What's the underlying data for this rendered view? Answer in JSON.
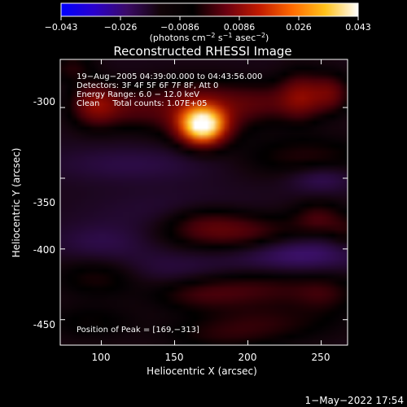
{
  "colorbar": {
    "ticks": [
      "−0.043",
      "−0.026",
      "−0.0086",
      "0.0086",
      "0.026",
      "0.043"
    ],
    "units_main": "(photons cm",
    "units_sup1": "−2",
    "units_mid1": " s",
    "units_sup2": "−1",
    "units_mid2": " asec",
    "units_sup3": "−2",
    "units_end": ")",
    "stops": [
      "#0000ff",
      "#2a00cc",
      "#3b0a66",
      "#120408",
      "#000000",
      "#6a0010",
      "#c21a00",
      "#ff6a00",
      "#ffc21a",
      "#ffffff"
    ]
  },
  "chart_data": {
    "type": "heatmap",
    "title": "Reconstructed RHESSI Image",
    "xlabel": "Heliocentric X (arcsec)",
    "ylabel": "Heliocentric Y (arcsec)",
    "xlim": [
      72,
      268
    ],
    "ylim": [
      -468,
      -266
    ],
    "xticks": [
      100,
      150,
      200,
      250
    ],
    "yticks": [
      -300,
      -350,
      -400,
      -450
    ],
    "color_range": [
      -0.043,
      0.043
    ],
    "annotations": [
      "19−Aug−2005 04:39:00.000 to 04:43:56.000",
      "Detectors: 3F 4F 5F 6F 7F 8F, Att 0",
      "Energy Range: 6.0 − 12.0 keV",
      "Clean     Total counts: 1.07E+05"
    ],
    "peak_label": "Position of Peak = [169,−313]",
    "peak": [
      169,
      -313
    ],
    "blobs": [
      {
        "x": 169,
        "y": -313,
        "sx": 11,
        "sy": 9,
        "amp": 0.045
      },
      {
        "x": 165,
        "y": -300,
        "sx": 26,
        "sy": 12,
        "amp": 0.014
      },
      {
        "x": 96,
        "y": -298,
        "sx": 11,
        "sy": 10,
        "amp": 0.016
      },
      {
        "x": 118,
        "y": -300,
        "sx": 14,
        "sy": 9,
        "amp": 0.006
      },
      {
        "x": 236,
        "y": -292,
        "sx": 10,
        "sy": 11,
        "amp": 0.014
      },
      {
        "x": 256,
        "y": -290,
        "sx": 9,
        "sy": 9,
        "amp": 0.012
      },
      {
        "x": 212,
        "y": -296,
        "sx": 18,
        "sy": 9,
        "amp": 0.007
      },
      {
        "x": 80,
        "y": -272,
        "sx": 10,
        "sy": 7,
        "amp": 0.006
      },
      {
        "x": 240,
        "y": -335,
        "sx": 30,
        "sy": 10,
        "amp": 0.006
      },
      {
        "x": 120,
        "y": -340,
        "sx": 40,
        "sy": 9,
        "amp": -0.004
      },
      {
        "x": 250,
        "y": -350,
        "sx": 16,
        "sy": 7,
        "amp": -0.006
      },
      {
        "x": 150,
        "y": -375,
        "sx": 42,
        "sy": 12,
        "amp": -0.003
      },
      {
        "x": 190,
        "y": -388,
        "sx": 32,
        "sy": 9,
        "amp": 0.011
      },
      {
        "x": 170,
        "y": -380,
        "sx": 18,
        "sy": 8,
        "amp": 0.005
      },
      {
        "x": 248,
        "y": -378,
        "sx": 12,
        "sy": 8,
        "amp": 0.008
      },
      {
        "x": 266,
        "y": -388,
        "sx": 8,
        "sy": 8,
        "amp": 0.005
      },
      {
        "x": 100,
        "y": -395,
        "sx": 24,
        "sy": 9,
        "amp": -0.004
      },
      {
        "x": 235,
        "y": -403,
        "sx": 30,
        "sy": 9,
        "amp": -0.008
      },
      {
        "x": 150,
        "y": -415,
        "sx": 34,
        "sy": 10,
        "amp": -0.004
      },
      {
        "x": 98,
        "y": -420,
        "sx": 20,
        "sy": 9,
        "amp": 0.006
      },
      {
        "x": 200,
        "y": -428,
        "sx": 38,
        "sy": 9,
        "amp": 0.008
      },
      {
        "x": 165,
        "y": -433,
        "sx": 20,
        "sy": 7,
        "amp": 0.004
      },
      {
        "x": 252,
        "y": -432,
        "sx": 14,
        "sy": 9,
        "amp": 0.005
      },
      {
        "x": 92,
        "y": -452,
        "sx": 22,
        "sy": 9,
        "amp": 0.004
      },
      {
        "x": 210,
        "y": -452,
        "sx": 34,
        "sy": 9,
        "amp": 0.006
      },
      {
        "x": 180,
        "y": -462,
        "sx": 26,
        "sy": 7,
        "amp": 0.004
      }
    ]
  },
  "footer": {
    "date": "1−May−2022 17:54"
  }
}
